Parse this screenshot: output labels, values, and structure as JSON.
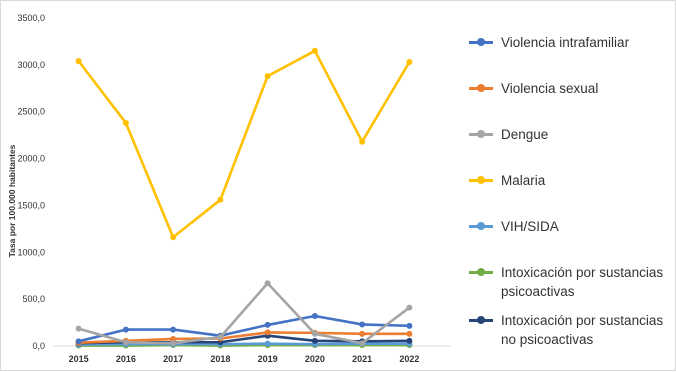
{
  "chart_data": {
    "type": "line",
    "title": "",
    "xlabel": "",
    "ylabel": "Tasa por 100.000 habitantes",
    "ylim": [
      0,
      3500
    ],
    "yticks": [
      "0,0",
      "500,0",
      "1000,0",
      "1500,0",
      "2000,0",
      "2500,0",
      "3000,0",
      "3500,0"
    ],
    "grid": false,
    "legend_position": "right",
    "categories": [
      "2015",
      "2016",
      "2017",
      "2018",
      "2019",
      "2020",
      "2021",
      "2022"
    ],
    "series": [
      {
        "name": "Violencia intrafamiliar",
        "color": "#4472C4",
        "values": [
          50,
          175,
          175,
          110,
          225,
          320,
          230,
          215
        ]
      },
      {
        "name": "Violencia sexual",
        "color": "#ED7D31",
        "values": [
          35,
          55,
          75,
          80,
          145,
          140,
          130,
          130
        ]
      },
      {
        "name": "Dengue",
        "color": "#A5A5A5",
        "values": [
          185,
          40,
          30,
          95,
          670,
          130,
          30,
          410
        ]
      },
      {
        "name": "Malaria",
        "color": "#FFC000",
        "values": [
          3040,
          2380,
          1160,
          1560,
          2880,
          3150,
          2180,
          3030
        ]
      },
      {
        "name": "VIH/SIDA",
        "color": "#5B9BD5",
        "values": [
          15,
          20,
          20,
          20,
          25,
          20,
          25,
          25
        ]
      },
      {
        "name": "Intoxicación por sustancias psicoactivas",
        "color": "#70AD47",
        "values": [
          5,
          5,
          10,
          5,
          10,
          10,
          10,
          10
        ]
      },
      {
        "name": "Intoxicación por sustancias no psicoactivas",
        "color": "#264478",
        "values": [
          30,
          40,
          40,
          40,
          110,
          55,
          50,
          55
        ]
      }
    ]
  }
}
